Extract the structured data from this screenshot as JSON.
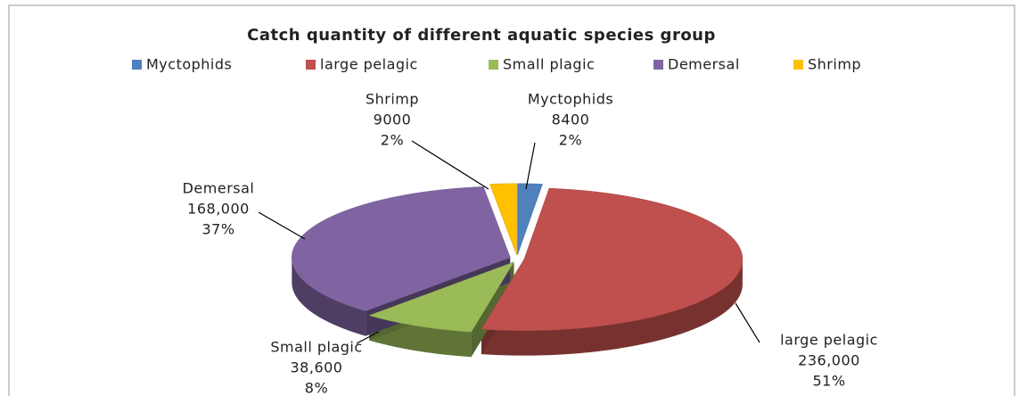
{
  "chart_data": {
    "type": "pie3d",
    "title": "Catch quantity of different aquatic species group",
    "categories": [
      "Myctophids",
      "large pelagic",
      "Small plagic",
      "Demersal",
      "Shrimp"
    ],
    "values": [
      8400,
      236000,
      38600,
      168000,
      9000
    ],
    "value_labels": [
      "8400",
      "236,000",
      "38,600",
      "168,000",
      "9000"
    ],
    "percent_labels": [
      "2%",
      "51%",
      "8%",
      "37%",
      "2%"
    ],
    "colors": [
      "#4f81bd",
      "#c0504d",
      "#9bbb59",
      "#8064a2",
      "#ffc000"
    ],
    "legend": "top"
  }
}
